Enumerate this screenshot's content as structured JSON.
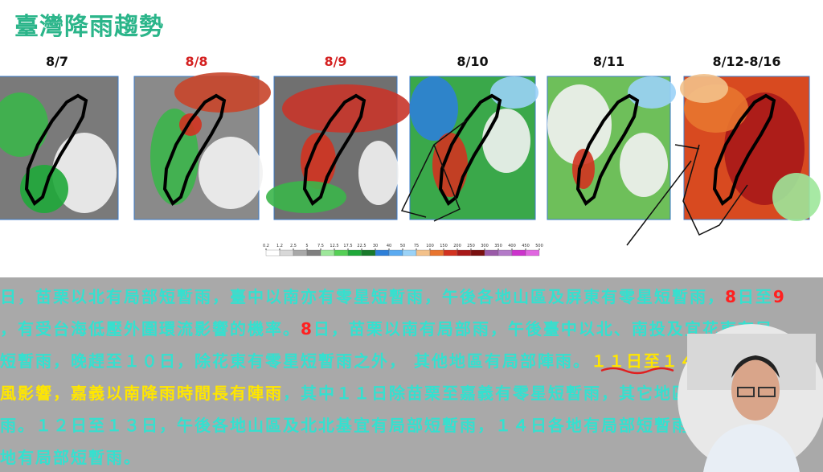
{
  "title": "臺灣降雨趨勢",
  "panels": [
    {
      "label": "8/7",
      "color": "#111111"
    },
    {
      "label": "8/8",
      "color": "#d42020"
    },
    {
      "label": "8/9",
      "color": "#d42020"
    },
    {
      "label": "8/10",
      "color": "#111111"
    },
    {
      "label": "8/11",
      "color": "#111111"
    },
    {
      "label": "8/12-8/16",
      "color": "#111111"
    }
  ],
  "colorbar": {
    "ticks": [
      0.2,
      1.2,
      2.5,
      5,
      7.5,
      12.5,
      17.5,
      22.5,
      30,
      40,
      50,
      75,
      100,
      150,
      200,
      250,
      300,
      350,
      400,
      450,
      500
    ],
    "colors": [
      "#ffffff",
      "#d8d8d8",
      "#a8a8a8",
      "#7f7f7f",
      "#9de79a",
      "#55cf55",
      "#1fa83a",
      "#187a2b",
      "#2e7fd8",
      "#5aaaf0",
      "#9ad2f7",
      "#f3c18a",
      "#e8752f",
      "#d23320",
      "#a81818",
      "#7a1010",
      "#9a5aa8",
      "#b37ac8",
      "#cc33cc",
      "#e066e0"
    ]
  },
  "text_lines": [
    [
      {
        "text": "日，苗栗以北有局部短暫雨，臺中以南亦有零星短暫雨，午後各地山區及屏東有零星短暫雨，",
        "color": "#35e0cf"
      },
      {
        "text": "8",
        "color": "#ff2020"
      },
      {
        "text": "日至",
        "color": "#35e0cf"
      },
      {
        "text": "9",
        "color": "#ff2020"
      }
    ],
    [
      {
        "text": "，有受台海低壓外圍環流影響的機率。",
        "color": "#35e0cf"
      },
      {
        "text": "8",
        "color": "#ff2020"
      },
      {
        "text": "日，苗栗以南有局部雨，午後臺中以北、南投及宜花東有局",
        "color": "#35e0cf"
      }
    ],
    [
      {
        "text": "短暫雨，晚趕至１０日，除花東有零星短暫雨之外， 其他地區有局部陣雨。",
        "color": "#35e0cf"
      },
      {
        "text": "１１日至１４",
        "color": "#ffe600"
      }
    ],
    [
      {
        "text": "風影響，嘉義以南降雨時間長有陣雨",
        "color": "#ffe600"
      },
      {
        "text": "，其中１１日除苗栗至嘉義有零星短暫雨，其它地區",
        "color": "#35e0cf"
      }
    ],
    [
      {
        "text": "雨。１２日至１３日，午後各地山區及北北基宜有局部短暫雨，１４日各地有局部短暫雨",
        "color": "#35e0cf"
      }
    ],
    [
      {
        "text": "地有局部短暫雨。",
        "color": "#35e0cf"
      }
    ]
  ]
}
